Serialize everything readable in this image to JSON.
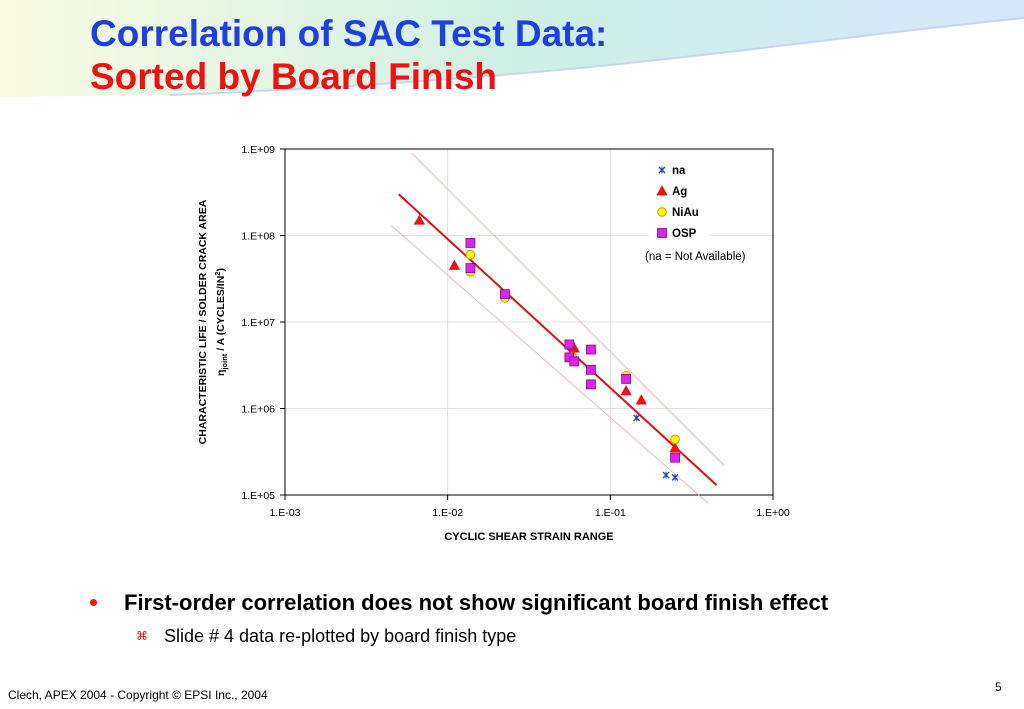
{
  "header": {
    "title_line1": "Correlation of SAC Test Data:",
    "title_line2": "Sorted by Board Finish",
    "title_line1_color": "#1f3fe0",
    "title_line2_color": "#ee1111"
  },
  "chart_data": {
    "type": "scatter",
    "xscale": "log",
    "yscale": "log",
    "xlim": [
      0.001,
      1
    ],
    "ylim": [
      100000,
      1000000000
    ],
    "x_tick_labels": [
      "1.E-03",
      "1.E-02",
      "1.E-01",
      "1.E+00"
    ],
    "y_tick_labels": [
      "1.E+05",
      "1.E+06",
      "1.E+07",
      "1.E+08",
      "1.E+09"
    ],
    "xlabel": "CYCLIC SHEAR STRAIN  RANGE",
    "ylabel_line1": "CHARACTERISTIC LIFE / SOLDER CRACK AREA",
    "ylabel_line2": "ηjoint / A (CYCLES/IN2)",
    "ylabel_line2_parts": {
      "eta": "η",
      "sub": "joint",
      "middle": " / A (CYCLES/IN",
      "sup": "2",
      "end": ")"
    },
    "legend_position": "top-right",
    "annotation": "(na = Not Available)",
    "series": [
      {
        "name": "na",
        "marker": "x",
        "color": "#1f3fe0",
        "x": [
          0.22,
          0.25,
          0.145
        ],
        "y": [
          170000,
          160000,
          780000
        ]
      },
      {
        "name": "Ag",
        "marker": "triangle",
        "color": "#ee1111",
        "x": [
          0.0067,
          0.011,
          0.06,
          0.125,
          0.155,
          0.25
        ],
        "y": [
          150000000,
          45000000,
          5000000,
          1600000,
          1250000,
          350000
        ]
      },
      {
        "name": "NiAu",
        "marker": "circle",
        "color": "#ffff00",
        "x": [
          0.0138,
          0.0138,
          0.0225,
          0.058,
          0.125,
          0.25
        ],
        "y": [
          60000000,
          38000000,
          19000000,
          4000000,
          2400000,
          440000
        ]
      },
      {
        "name": "OSP",
        "marker": "square",
        "color": "#dd22ee",
        "x": [
          0.0138,
          0.0138,
          0.0225,
          0.056,
          0.056,
          0.06,
          0.076,
          0.076,
          0.076,
          0.125,
          0.25
        ],
        "y": [
          82000000,
          42000000,
          21000000,
          5500000,
          3900000,
          3500000,
          4800000,
          2800000,
          1900000,
          2200000,
          270000
        ]
      }
    ],
    "fit_line": {
      "color": "#dd1111",
      "x": [
        0.005,
        0.45
      ],
      "y": [
        300000000,
        130000
      ]
    },
    "band_upper": {
      "color": "#f0b0b0",
      "x": [
        0.006,
        0.5
      ],
      "y": [
        900000000,
        220000
      ]
    },
    "band_lower": {
      "color": "#f0b0b0",
      "x": [
        0.0045,
        0.4
      ],
      "y": [
        130000000,
        80000
      ]
    }
  },
  "bullets": {
    "main": "First-order correlation does not show significant board finish effect",
    "sub": "Slide # 4 data re-plotted by board finish type",
    "sub_marker": "⌘"
  },
  "footer": {
    "text": "Clech, APEX 2004  -  Copyright © EPSI Inc., 2004",
    "page_number": "5"
  }
}
